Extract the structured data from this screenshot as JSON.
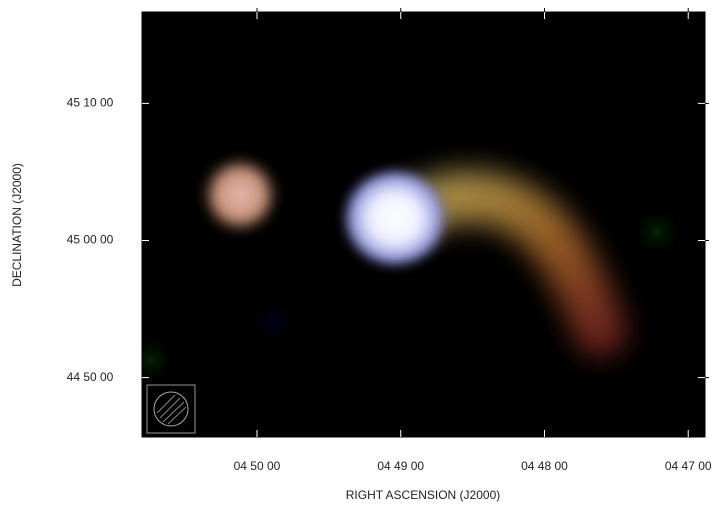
{
  "chart_data": {
    "type": "image",
    "xlabel": "RIGHT ASCENSION  (J2000)",
    "ylabel": "DECLINATION  (J2000)",
    "xlim": [
      17448,
      17213
    ],
    "xticks": [
      {
        "value": 17400,
        "label": "04 50 00"
      },
      {
        "value": 17340,
        "label": "04 49 00"
      },
      {
        "value": 17280,
        "label": "04 48 00"
      },
      {
        "value": 17220,
        "label": "04 47 00"
      }
    ],
    "ylim": [
      161140,
      163000
    ],
    "yticks": [
      {
        "value": 162600,
        "label": "45 10 00"
      },
      {
        "value": 162000,
        "label": "45 00 00"
      },
      {
        "value": 161400,
        "label": "44 50 00"
      }
    ]
  }
}
